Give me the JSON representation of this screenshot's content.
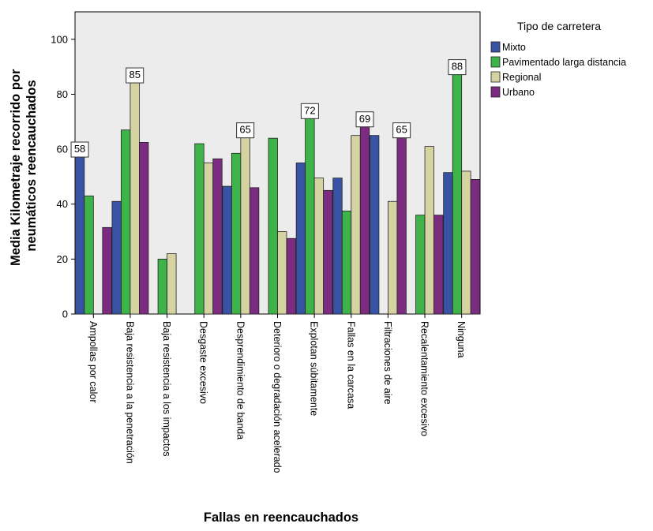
{
  "chart_data": {
    "type": "bar",
    "title": "",
    "xlabel": "Fallas en reencauchados",
    "ylabel_lines": [
      "Media Kilometraje recorrido por",
      "neumáticos reencauchados"
    ],
    "ylim": [
      0,
      110
    ],
    "yticks": [
      0,
      20,
      40,
      60,
      80,
      100
    ],
    "grid": false,
    "legend_placement": "right",
    "legend_title": "Tipo de carretera",
    "categories": [
      "Ampollas por calor",
      "Baja resistencia a la penetración",
      "Baja resistencia a los impactos",
      "Desgaste excesivo",
      "Desprendimiento de banda",
      "Deterioro o degradación acelerado",
      "Explotan súbitamente",
      "Fallas en la carcasa",
      "Filtraciones de aire",
      "Recalentamiento excesivo",
      "Ninguna"
    ],
    "series": [
      {
        "name": "Mixto",
        "color": "#3953a4",
        "values": [
          58,
          41,
          null,
          null,
          46.5,
          null,
          55,
          49.5,
          65,
          null,
          51.5
        ]
      },
      {
        "name": "Pavimentado larga distancia",
        "color": "#3db34a",
        "values": [
          43,
          67,
          20,
          62,
          58.5,
          64,
          72,
          37.5,
          null,
          36,
          88
        ]
      },
      {
        "name": "Regional",
        "color": "#d6d3a2",
        "values": [
          null,
          85,
          22,
          55,
          65,
          30,
          49.5,
          65,
          41,
          61,
          52
        ]
      },
      {
        "name": "Urbano",
        "color": "#7b2b80",
        "values": [
          31.5,
          62.5,
          null,
          56.5,
          46,
          27.5,
          45,
          69,
          65,
          36,
          49
        ]
      }
    ],
    "data_labels": [
      {
        "category": 0,
        "series": 0,
        "text": "58"
      },
      {
        "category": 1,
        "series": 2,
        "text": "85"
      },
      {
        "category": 4,
        "series": 2,
        "text": "65"
      },
      {
        "category": 6,
        "series": 1,
        "text": "72"
      },
      {
        "category": 7,
        "series": 3,
        "text": "69"
      },
      {
        "category": 8,
        "series": 3,
        "text": "65"
      },
      {
        "category": 10,
        "series": 1,
        "text": "88"
      }
    ],
    "plot_background": "#ececec"
  }
}
